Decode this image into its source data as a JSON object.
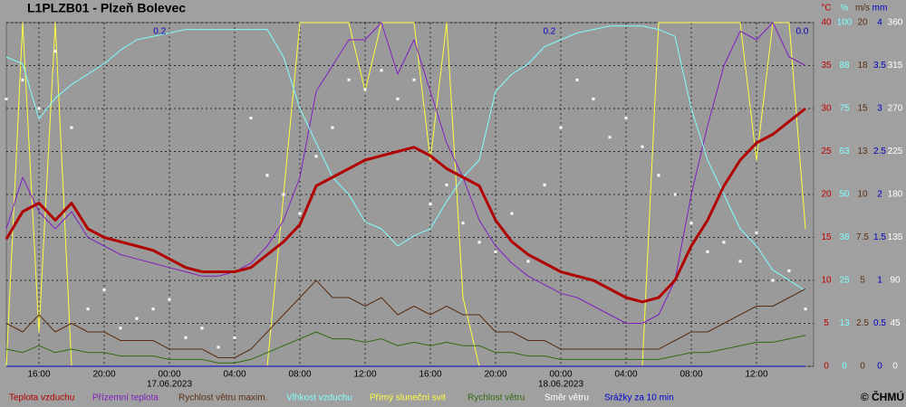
{
  "chart_data": {
    "type": "line",
    "title": "L1PLZB01 - Plzeň Bolevec",
    "copyright": "© ČHMÚ",
    "x": [
      -10,
      -9,
      -8,
      -7,
      -6,
      -5,
      -4,
      -3,
      -2,
      -1,
      0,
      1,
      2,
      3,
      4,
      5,
      6,
      7,
      8,
      9,
      10,
      11,
      12,
      13,
      14,
      15,
      16,
      17,
      18,
      19,
      20,
      21,
      22,
      23,
      24,
      25,
      26,
      27,
      28,
      29,
      30,
      31,
      32,
      33,
      34,
      35,
      36,
      37,
      38,
      39
    ],
    "xlim": [
      -10,
      39.5
    ],
    "xticks": [
      {
        "value": -8,
        "label": "16:00"
      },
      {
        "value": -4,
        "label": "20:00"
      },
      {
        "value": 0,
        "label": "00:00"
      },
      {
        "value": 4,
        "label": "04:00"
      },
      {
        "value": 8,
        "label": "08:00"
      },
      {
        "value": 12,
        "label": "12:00"
      },
      {
        "value": 16,
        "label": "16:00"
      },
      {
        "value": 20,
        "label": "20:00"
      },
      {
        "value": 24,
        "label": "00:00"
      },
      {
        "value": 28,
        "label": "04:00"
      },
      {
        "value": 32,
        "label": "08:00"
      },
      {
        "value": 36,
        "label": "12:00"
      }
    ],
    "date_labels": [
      {
        "value": 0,
        "label": "17.06.2023"
      },
      {
        "value": 24,
        "label": "18.06.2023"
      }
    ],
    "annotations": [
      {
        "x": -0.6,
        "label": "0.2"
      },
      {
        "x": 23.3,
        "label": "0.2"
      },
      {
        "x": 38.8,
        "label": "0.0"
      }
    ],
    "grid": true,
    "ylabel": "°C",
    "ycolor": "#c00000",
    "ylim": [
      0,
      40
    ],
    "yticks": [
      0,
      5,
      10,
      15,
      20,
      25,
      30,
      35,
      40
    ],
    "y2label": "%",
    "y2color": "#80ffff",
    "y2lim": [
      0,
      100
    ],
    "y2ticks": [
      0,
      {
        "value": 12.5,
        "label": "13"
      },
      25,
      {
        "value": 37.5,
        "label": "38"
      },
      50,
      {
        "value": 62.5,
        "label": "63"
      },
      75,
      {
        "value": 87.5,
        "label": "88"
      },
      100
    ],
    "y3label": "m/s",
    "y3color": "#5a2e10",
    "y3lim": [
      0,
      20
    ],
    "y3ticks": [
      0,
      2.5,
      5,
      7.5,
      10,
      {
        "value": 12.5,
        "label": "13"
      },
      15,
      {
        "value": 17.5,
        "label": "18"
      },
      20
    ],
    "y4label": "mm",
    "y4color": "#0000c0",
    "y4lim": [
      0,
      4
    ],
    "y4ticks": [
      0,
      0.5,
      1,
      1.5,
      2,
      2.5,
      3,
      3.5,
      4
    ],
    "y5color": "#ffffff",
    "y5lim": [
      0,
      360
    ],
    "y5ticks": [
      0,
      45,
      90,
      135,
      180,
      225,
      270,
      315,
      360
    ],
    "series": [
      {
        "name": "Přímý sluneční svit",
        "color": "#ffff40",
        "axis": "y2",
        "style": "line",
        "values": [
          0,
          100,
          10,
          100,
          0,
          0,
          0,
          0,
          0,
          0,
          0,
          0,
          0,
          0,
          0,
          0,
          0,
          50,
          100,
          100,
          100,
          100,
          80,
          100,
          100,
          100,
          60,
          100,
          20,
          0,
          0,
          0,
          0,
          0,
          0,
          0,
          0,
          0,
          0,
          0,
          100,
          100,
          100,
          100,
          100,
          100,
          60,
          100,
          100,
          40
        ]
      },
      {
        "name": "Přízemní teplota",
        "color": "#8020c0",
        "axis": "y",
        "style": "line",
        "values": [
          16,
          22,
          18,
          16,
          18,
          15,
          14,
          13,
          12.5,
          12,
          11.5,
          11,
          10.5,
          10.5,
          11,
          12,
          14,
          17,
          22,
          32,
          35,
          38,
          38,
          40,
          34,
          38,
          32,
          26,
          22,
          17,
          14,
          12,
          10.5,
          9.5,
          8.5,
          8,
          7,
          6,
          5,
          5,
          6,
          10,
          20,
          28,
          35,
          39,
          38,
          40,
          36,
          35
        ]
      },
      {
        "name": "Vlhkost vzduchu",
        "color": "#80ffff",
        "axis": "y2",
        "style": "line",
        "values": [
          90,
          88,
          72,
          78,
          82,
          85,
          88,
          92,
          95,
          96,
          97,
          98,
          98,
          98,
          98,
          98,
          98,
          90,
          75,
          65,
          55,
          50,
          42,
          40,
          35,
          38,
          40,
          48,
          55,
          60,
          80,
          85,
          88,
          93,
          95,
          97,
          98,
          99,
          99,
          99,
          98,
          96,
          75,
          60,
          50,
          40,
          35,
          28,
          25,
          22
        ]
      },
      {
        "name": "Rychlost větru maxim.",
        "color": "#5a2e10",
        "axis": "y3",
        "style": "line",
        "values": [
          2.5,
          2,
          3,
          2,
          2.5,
          2,
          2,
          1.5,
          1.5,
          1.5,
          1,
          1,
          1,
          0.5,
          0.5,
          1,
          2,
          3,
          4,
          5,
          4,
          4,
          3.5,
          4,
          3,
          3.5,
          3,
          3.5,
          3,
          3,
          2,
          2,
          1.5,
          1.5,
          1,
          1,
          1,
          1,
          1,
          1,
          1,
          1.5,
          2,
          2,
          2.5,
          3,
          3.5,
          3.5,
          4,
          4.5
        ]
      },
      {
        "name": "Rychlost větru",
        "color": "#2f6a10",
        "axis": "y3",
        "style": "line",
        "values": [
          1,
          0.8,
          1.2,
          0.8,
          1,
          0.8,
          0.8,
          0.6,
          0.6,
          0.6,
          0.4,
          0.4,
          0.4,
          0.2,
          0.2,
          0.4,
          0.8,
          1.2,
          1.6,
          2,
          1.6,
          1.6,
          1.4,
          1.6,
          1.2,
          1.4,
          1.2,
          1.4,
          1.2,
          1.2,
          0.8,
          0.8,
          0.6,
          0.6,
          0.4,
          0.4,
          0.4,
          0.4,
          0.4,
          0.4,
          0.4,
          0.6,
          0.8,
          0.8,
          1,
          1.2,
          1.4,
          1.4,
          1.6,
          1.8
        ]
      },
      {
        "name": "Směr větru",
        "color": "#ffffff",
        "axis": "y5",
        "style": "dots",
        "values": [
          280,
          300,
          270,
          330,
          250,
          60,
          80,
          40,
          50,
          60,
          70,
          30,
          40,
          20,
          30,
          260,
          200,
          180,
          160,
          220,
          250,
          300,
          290,
          310,
          280,
          300,
          170,
          190,
          150,
          130,
          120,
          160,
          110,
          190,
          250,
          300,
          280,
          240,
          260,
          230,
          200,
          180,
          150,
          120,
          130,
          110,
          140,
          90,
          100,
          60
        ]
      },
      {
        "name": "Teplota vzduchu",
        "color": "#b00000",
        "axis": "y",
        "style": "thick",
        "values": [
          14.8,
          18,
          19,
          17,
          19,
          16,
          15,
          14.5,
          14,
          13.5,
          12.5,
          11.5,
          11,
          11,
          11,
          11.5,
          13,
          14.5,
          16.5,
          21,
          22,
          23,
          24,
          24.5,
          25,
          25.5,
          24.5,
          23,
          22,
          21,
          17,
          14.5,
          13,
          12,
          11,
          10.5,
          10,
          9,
          8,
          7.5,
          8,
          10,
          14,
          17,
          21,
          24,
          26,
          27,
          28.5,
          30
        ]
      },
      {
        "name": "Srážky za 10 min",
        "color": "#0000d0",
        "axis": "y4",
        "style": "line",
        "values": [
          0,
          0,
          0,
          0,
          0,
          0,
          0,
          0,
          0,
          0,
          0,
          0,
          0,
          0,
          0,
          0,
          0,
          0,
          0,
          0,
          0,
          0,
          0,
          0,
          0,
          0,
          0,
          0,
          0,
          0,
          0,
          0,
          0,
          0,
          0,
          0,
          0,
          0,
          0,
          0,
          0,
          0,
          0,
          0,
          0,
          0,
          0,
          0,
          0,
          0
        ]
      }
    ]
  }
}
